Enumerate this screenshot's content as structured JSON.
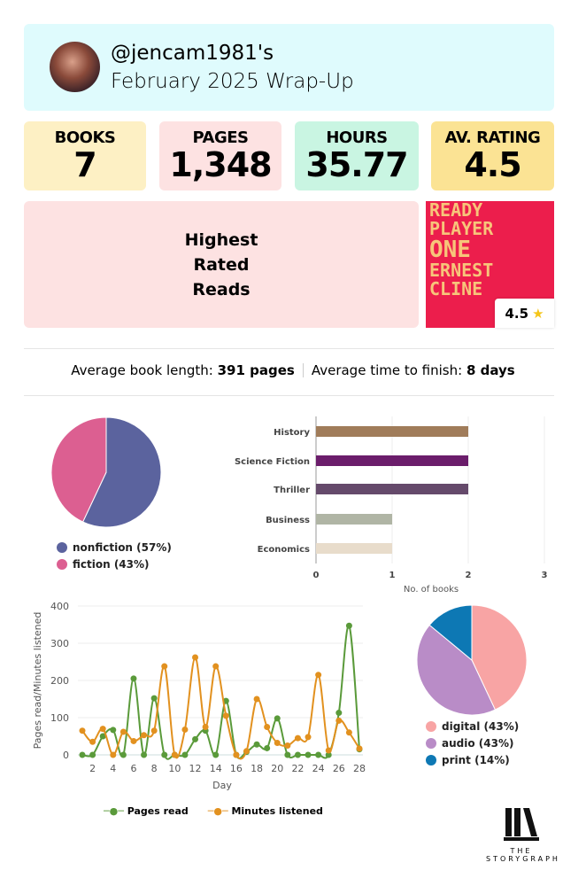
{
  "header": {
    "handle": "@jencam1981's",
    "subtitle": "February 2025 Wrap-Up"
  },
  "stats": [
    {
      "label": "BOOKS",
      "value": "7",
      "color": "#fdf0c4"
    },
    {
      "label": "PAGES",
      "value": "1,348",
      "color": "#fde2e2"
    },
    {
      "label": "HOURS",
      "value": "35.77",
      "color": "#c9f5e2"
    },
    {
      "label": "AV. RATING",
      "value": "4.5",
      "color": "#fbe394"
    }
  ],
  "highest_rated": {
    "label_lines": [
      "Highest",
      "Rated",
      "Reads"
    ],
    "book": {
      "cover_lines": [
        "READY",
        "PLAYER",
        "ONE",
        "ERNEST",
        "CLINE"
      ],
      "rating": "4.5"
    }
  },
  "averages": {
    "length_label": "Average book length:",
    "length_value": "391 pages",
    "time_label": "Average time to finish:",
    "time_value": "8 days"
  },
  "chart_data": [
    {
      "type": "pie",
      "slices": [
        {
          "label": "nonfiction (57%)",
          "value": 57,
          "color": "#5b639e"
        },
        {
          "label": "fiction (43%)",
          "value": 43,
          "color": "#dc5f91"
        }
      ]
    },
    {
      "type": "bar",
      "orientation": "horizontal",
      "categories": [
        "History",
        "Science Fiction",
        "Thriller",
        "Business",
        "Economics"
      ],
      "values": [
        2,
        2,
        2,
        1,
        1
      ],
      "colors": [
        "#a07c5a",
        "#6b1d6b",
        "#654a6b",
        "#b0b5a5",
        "#e8dccb"
      ],
      "xlabel": "No. of books",
      "xlim": [
        0,
        3
      ],
      "xticks": [
        "0",
        "1",
        "2",
        "3"
      ],
      "grid": true
    },
    {
      "type": "line",
      "x": [
        1,
        2,
        3,
        4,
        5,
        6,
        7,
        8,
        9,
        10,
        11,
        12,
        13,
        14,
        15,
        16,
        17,
        18,
        19,
        20,
        21,
        22,
        23,
        24,
        25,
        26,
        27,
        28
      ],
      "xticks": [
        "2",
        "4",
        "6",
        "8",
        "10",
        "12",
        "14",
        "16",
        "18",
        "20",
        "22",
        "24",
        "26",
        "28"
      ],
      "yticks": [
        "0",
        "100",
        "200",
        "300",
        "400"
      ],
      "ylim": [
        0,
        400
      ],
      "xlabel": "Day",
      "ylabel": "Pages read/Minutes listened",
      "grid": true,
      "legend": "bottom",
      "series": [
        {
          "name": "Pages read",
          "color": "#5a9a3a",
          "values": [
            0,
            0,
            50,
            67,
            0,
            205,
            0,
            152,
            0,
            0,
            0,
            42,
            65,
            0,
            145,
            0,
            8,
            28,
            18,
            98,
            0,
            0,
            0,
            0,
            0,
            113,
            347,
            15
          ]
        },
        {
          "name": "Minutes listened",
          "color": "#e2911f",
          "values": [
            65,
            35,
            70,
            0,
            62,
            37,
            53,
            65,
            238,
            0,
            68,
            262,
            75,
            238,
            105,
            0,
            10,
            150,
            75,
            32,
            25,
            45,
            48,
            215,
            12,
            92,
            60,
            17
          ]
        }
      ]
    },
    {
      "type": "pie",
      "slices": [
        {
          "label": "digital (43%)",
          "value": 43,
          "color": "#f8a4a4"
        },
        {
          "label": "audio (43%)",
          "value": 43,
          "color": "#b98cc7"
        },
        {
          "label": "print (14%)",
          "value": 14,
          "color": "#0d78b4"
        }
      ]
    }
  ],
  "logo": {
    "line1": "THE",
    "line2": "STORYGRAPH"
  }
}
